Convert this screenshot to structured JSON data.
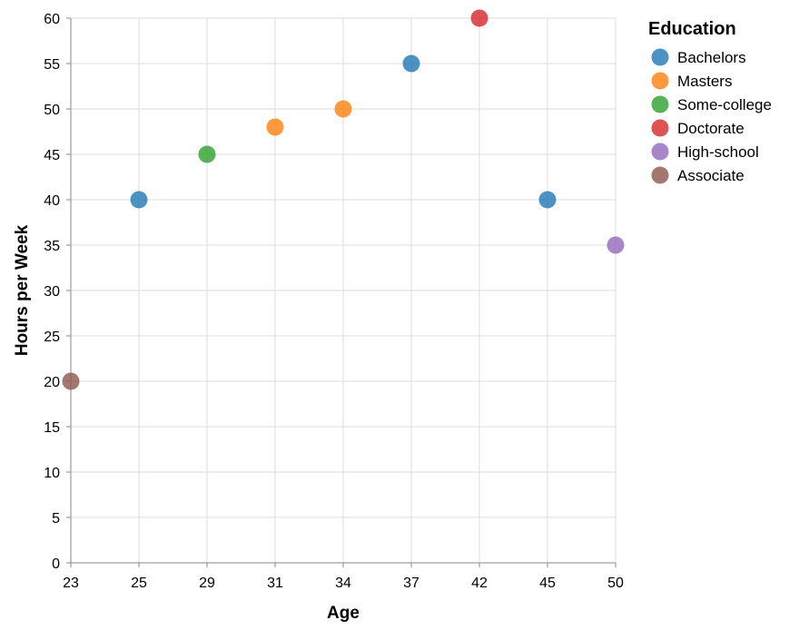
{
  "chart_data": {
    "type": "scatter",
    "title": "",
    "xlabel": "Age",
    "ylabel": "Hours per Week",
    "x_ticks": [
      "23",
      "25",
      "29",
      "31",
      "34",
      "37",
      "42",
      "45",
      "50"
    ],
    "x_scale": "ordinal (band points, evenly spaced)",
    "ylim": [
      0,
      60
    ],
    "y_ticks": [
      0,
      5,
      10,
      15,
      20,
      25,
      30,
      35,
      40,
      45,
      50,
      55,
      60
    ],
    "grid": true,
    "legend": {
      "title": "Education",
      "placement": "top-right",
      "entries": [
        {
          "name": "Bachelors",
          "color": "#1f77b4"
        },
        {
          "name": "Masters",
          "color": "#ff7f0e"
        },
        {
          "name": "Some-college",
          "color": "#2ca02c"
        },
        {
          "name": "Doctorate",
          "color": "#d62728"
        },
        {
          "name": "High-school",
          "color": "#9467bd"
        },
        {
          "name": "Associate",
          "color": "#8c564b"
        }
      ]
    },
    "points": [
      {
        "x": "23",
        "y": 20,
        "education": "Associate"
      },
      {
        "x": "25",
        "y": 40,
        "education": "Bachelors"
      },
      {
        "x": "29",
        "y": 45,
        "education": "Some-college"
      },
      {
        "x": "31",
        "y": 48,
        "education": "Masters"
      },
      {
        "x": "34",
        "y": 50,
        "education": "Masters"
      },
      {
        "x": "37",
        "y": 55,
        "education": "Bachelors"
      },
      {
        "x": "42",
        "y": 60,
        "education": "Doctorate"
      },
      {
        "x": "45",
        "y": 40,
        "education": "Bachelors"
      },
      {
        "x": "50",
        "y": 35,
        "education": "High-school"
      }
    ]
  }
}
